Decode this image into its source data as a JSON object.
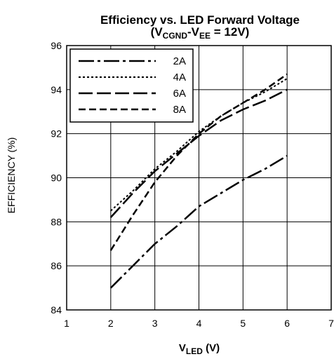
{
  "chart_data": {
    "type": "line",
    "title": {
      "line1": "Efficiency vs. LED Forward Voltage",
      "line2": {
        "open": "(V",
        "sub1": "CGND",
        "mid": "-V",
        "sub2": "EE",
        "close": " = 12V)"
      }
    },
    "xlabel": {
      "main": "V",
      "sub": "LED",
      "suffix": " (V)"
    },
    "ylabel": "EFFICIENCY (%)",
    "xlim": [
      1,
      7
    ],
    "ylim": [
      84,
      96
    ],
    "xticks": [
      1,
      2,
      3,
      4,
      5,
      6,
      7
    ],
    "yticks": [
      84,
      86,
      88,
      90,
      92,
      94,
      96
    ],
    "grid": true,
    "legend_position": "top-left",
    "series": [
      {
        "name": "2A",
        "dash": "long-dash-dot",
        "x": [
          2,
          2.5,
          3,
          3.5,
          4,
          4.5,
          5,
          5.5,
          6
        ],
        "y": [
          85.0,
          86.0,
          87.0,
          87.8,
          88.7,
          89.3,
          89.9,
          90.4,
          91.0
        ]
      },
      {
        "name": "4A",
        "dash": "dotted",
        "x": [
          2,
          2.5,
          3,
          3.5,
          4,
          4.5,
          5,
          5.5,
          6
        ],
        "y": [
          88.5,
          89.4,
          90.4,
          91.2,
          92.1,
          92.8,
          93.4,
          93.9,
          94.5
        ]
      },
      {
        "name": "6A",
        "dash": "long-dash",
        "x": [
          2,
          2.5,
          3,
          3.5,
          4,
          4.5,
          5,
          5.5,
          6
        ],
        "y": [
          88.2,
          89.3,
          90.3,
          91.1,
          91.9,
          92.6,
          93.1,
          93.5,
          94.0
        ]
      },
      {
        "name": "8A",
        "dash": "dashed",
        "x": [
          2,
          2.5,
          3,
          3.5,
          4,
          4.5,
          5,
          5.5,
          6
        ],
        "y": [
          86.7,
          88.3,
          89.8,
          91.0,
          92.0,
          92.8,
          93.4,
          94.0,
          94.7
        ]
      }
    ]
  }
}
